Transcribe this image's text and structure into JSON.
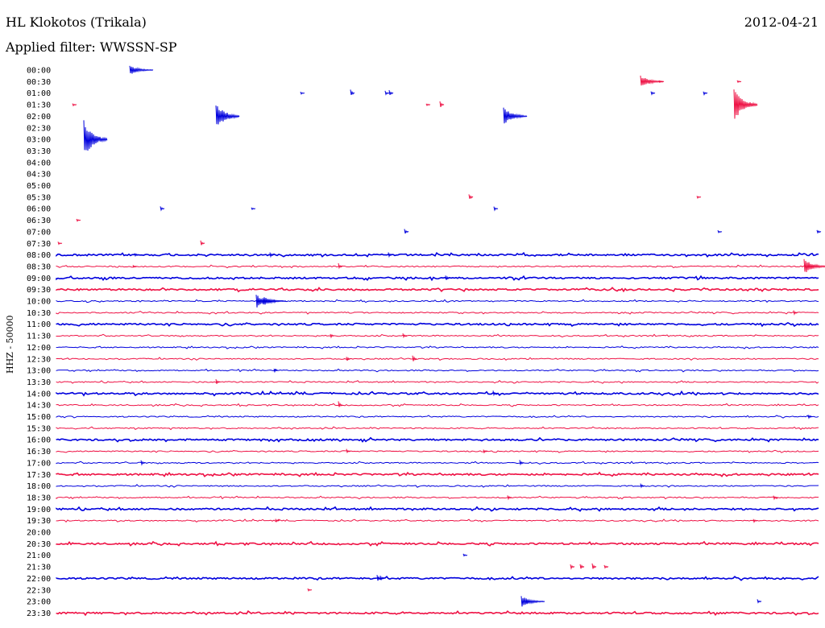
{
  "header": {
    "station": "HL Klokotos (Trikala)",
    "date": "2012-04-21",
    "filter": "Applied filter: WWSSN-SP"
  },
  "axis": {
    "channel_label": "HHZ - 50000"
  },
  "colors": {
    "blue": "#0000dd",
    "red": "#ee1144"
  },
  "chart_data": {
    "type": "line",
    "rows": [
      {
        "time": "00:00",
        "color": "blue",
        "level": 0,
        "events": [
          [
            161,
            6
          ]
        ]
      },
      {
        "time": "00:30",
        "color": "red",
        "level": 0,
        "events": [
          [
            795,
            8
          ],
          [
            818,
            2
          ],
          [
            915,
            2
          ]
        ]
      },
      {
        "time": "01:00",
        "color": "blue",
        "level": 0,
        "events": [
          [
            373,
            2
          ],
          [
            435,
            5
          ],
          [
            478,
            3
          ],
          [
            483,
            4
          ],
          [
            808,
            3
          ],
          [
            873,
            3
          ]
        ]
      },
      {
        "time": "01:30",
        "color": "red",
        "level": 0,
        "events": [
          [
            90,
            2
          ],
          [
            529,
            2
          ],
          [
            546,
            5
          ],
          [
            911,
            22
          ]
        ]
      },
      {
        "time": "02:00",
        "color": "blue",
        "level": 0,
        "events": [
          [
            268,
            18
          ],
          [
            625,
            12
          ]
        ]
      },
      {
        "time": "02:30",
        "color": "red",
        "level": 0,
        "events": []
      },
      {
        "time": "03:00",
        "color": "blue",
        "level": 0,
        "events": [
          [
            104,
            24
          ]
        ]
      },
      {
        "time": "03:30",
        "color": "red",
        "level": 0,
        "events": []
      },
      {
        "time": "04:00",
        "color": "blue",
        "level": 0,
        "events": []
      },
      {
        "time": "04:30",
        "color": "red",
        "level": 0,
        "events": []
      },
      {
        "time": "05:00",
        "color": "blue",
        "level": 0,
        "events": []
      },
      {
        "time": "05:30",
        "color": "red",
        "level": 0,
        "events": [
          [
            582,
            5
          ],
          [
            865,
            2
          ]
        ]
      },
      {
        "time": "06:00",
        "color": "blue",
        "level": 0,
        "events": [
          [
            199,
            3
          ],
          [
            312,
            2
          ],
          [
            613,
            3
          ]
        ]
      },
      {
        "time": "06:30",
        "color": "red",
        "level": 0,
        "events": [
          [
            95,
            2
          ]
        ]
      },
      {
        "time": "07:00",
        "color": "blue",
        "level": 0,
        "events": [
          [
            502,
            4
          ],
          [
            891,
            2
          ],
          [
            1014,
            3
          ]
        ]
      },
      {
        "time": "07:30",
        "color": "red",
        "level": 0,
        "events": [
          [
            72,
            2
          ],
          [
            249,
            4
          ]
        ]
      },
      {
        "time": "08:00",
        "color": "blue",
        "level": 2,
        "events": [
          [
            167,
            3
          ],
          [
            335,
            4
          ],
          [
            482,
            4
          ]
        ]
      },
      {
        "time": "08:30",
        "color": "red",
        "level": 1,
        "events": [
          [
            998,
            10
          ],
          [
            420,
            4
          ],
          [
            165,
            2
          ]
        ]
      },
      {
        "time": "09:00",
        "color": "blue",
        "level": 2,
        "events": [
          [
            553,
            4
          ]
        ]
      },
      {
        "time": "09:30",
        "color": "red",
        "level": 2,
        "events": []
      },
      {
        "time": "10:00",
        "color": "blue",
        "level": 1,
        "events": [
          [
            318,
            9
          ],
          [
            326,
            6
          ],
          [
            340,
            3
          ]
        ]
      },
      {
        "time": "10:30",
        "color": "red",
        "level": 1,
        "events": [
          [
            985,
            3
          ]
        ]
      },
      {
        "time": "11:00",
        "color": "blue",
        "level": 2,
        "events": []
      },
      {
        "time": "11:30",
        "color": "red",
        "level": 1,
        "events": [
          [
            500,
            3
          ],
          [
            410,
            3
          ]
        ]
      },
      {
        "time": "12:00",
        "color": "blue",
        "level": 1,
        "events": []
      },
      {
        "time": "12:30",
        "color": "red",
        "level": 1,
        "events": [
          [
            430,
            4
          ],
          [
            512,
            5
          ]
        ]
      },
      {
        "time": "13:00",
        "color": "blue",
        "level": 1,
        "events": [
          [
            340,
            3
          ]
        ]
      },
      {
        "time": "13:30",
        "color": "red",
        "level": 1,
        "events": [
          [
            268,
            4
          ]
        ]
      },
      {
        "time": "14:00",
        "color": "blue",
        "level": 2,
        "events": [
          [
            612,
            4
          ]
        ]
      },
      {
        "time": "14:30",
        "color": "red",
        "level": 1,
        "events": [
          [
            420,
            5
          ]
        ]
      },
      {
        "time": "15:00",
        "color": "blue",
        "level": 1,
        "events": [
          [
            1003,
            3
          ]
        ]
      },
      {
        "time": "15:30",
        "color": "red",
        "level": 1,
        "events": []
      },
      {
        "time": "16:00",
        "color": "blue",
        "level": 2,
        "events": []
      },
      {
        "time": "16:30",
        "color": "red",
        "level": 1,
        "events": [
          [
            430,
            3
          ],
          [
            600,
            3
          ]
        ]
      },
      {
        "time": "17:00",
        "color": "blue",
        "level": 1,
        "events": [
          [
            175,
            4
          ],
          [
            645,
            4
          ]
        ]
      },
      {
        "time": "17:30",
        "color": "red",
        "level": 2,
        "events": []
      },
      {
        "time": "18:00",
        "color": "blue",
        "level": 1,
        "events": [
          [
            795,
            3
          ]
        ]
      },
      {
        "time": "18:30",
        "color": "red",
        "level": 1,
        "events": [
          [
            960,
            3
          ],
          [
            630,
            3
          ]
        ]
      },
      {
        "time": "19:00",
        "color": "blue",
        "level": 2,
        "events": []
      },
      {
        "time": "19:30",
        "color": "red",
        "level": 1,
        "events": [
          [
            342,
            3
          ],
          [
            935,
            3
          ]
        ]
      },
      {
        "time": "20:00",
        "color": "blue",
        "level": 0,
        "events": []
      },
      {
        "time": "20:30",
        "color": "red",
        "level": 2,
        "events": []
      },
      {
        "time": "21:00",
        "color": "blue",
        "level": 0,
        "events": [
          [
            575,
            2
          ]
        ]
      },
      {
        "time": "21:30",
        "color": "red",
        "level": 0,
        "events": [
          [
            708,
            4
          ],
          [
            720,
            5
          ],
          [
            735,
            5
          ],
          [
            750,
            3
          ]
        ]
      },
      {
        "time": "22:00",
        "color": "blue",
        "level": 2,
        "events": [
          [
            468,
            5
          ],
          [
            472,
            4
          ]
        ]
      },
      {
        "time": "22:30",
        "color": "red",
        "level": 0,
        "events": [
          [
            382,
            2
          ]
        ]
      },
      {
        "time": "23:00",
        "color": "blue",
        "level": 0,
        "events": [
          [
            647,
            7
          ],
          [
            653,
            5
          ],
          [
            940,
            3
          ]
        ]
      },
      {
        "time": "23:30",
        "color": "red",
        "level": 2,
        "events": []
      }
    ]
  }
}
